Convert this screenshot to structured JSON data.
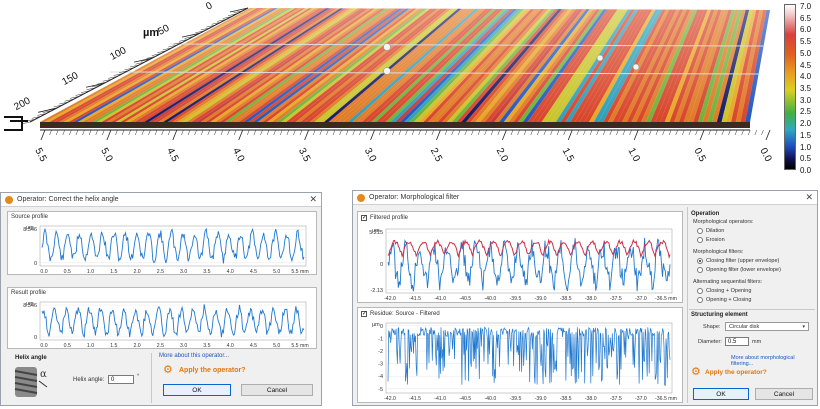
{
  "surface": {
    "depth_unit": "µm",
    "depth_ticks": [
      "0",
      "50",
      "100",
      "150",
      "200"
    ],
    "length_ticks": [
      "5.5",
      "5.0",
      "4.5",
      "4.0",
      "3.5",
      "3.0",
      "2.5",
      "2.0",
      "1.5",
      "1.0",
      "0.5",
      "0.0"
    ],
    "colorbar_ticks": [
      "7.0",
      "6.5",
      "6.0",
      "5.5",
      "5.0",
      "4.5",
      "4.0",
      "3.5",
      "3.0",
      "2.5",
      "2.0",
      "1.5",
      "1.0",
      "0.5",
      "0.0"
    ]
  },
  "helix_dialog": {
    "title": "Operator: Correct the helix angle",
    "close": "✕",
    "source_profile_label": "Source profile",
    "result_profile_label": "Result profile",
    "y_unit": "µm",
    "y_top_value": "8.346",
    "y_zero": "0",
    "x_ticks": [
      "0.0",
      "0.5",
      "1.0",
      "1.5",
      "2.0",
      "2.5",
      "3.0",
      "3.5",
      "4.0",
      "4.5",
      "5.0",
      "5.5 mm"
    ],
    "helix_section_title": "Helix angle",
    "helix_angle_label": "Helix angle:",
    "helix_angle_value": "0",
    "degree_symbol": "°",
    "alpha_symbol": "α",
    "more_about": "More about this operator...",
    "apply": "Apply the operator?",
    "ok": "OK",
    "cancel": "Cancel"
  },
  "morph_dialog": {
    "title": "Operator: Morphological filter",
    "close": "✕",
    "filtered_profile_label": "Filtered profile",
    "residue_label": "Residue: Source - Filtered",
    "y_unit": "µm",
    "top_y_max": "5.215",
    "top_y_zero": "0",
    "top_y_min": "-2.13",
    "bottom_y_ticks": [
      "0",
      "-1",
      "-2",
      "-3",
      "-4",
      "-5"
    ],
    "x_ticks": [
      "-42.0",
      "-41.5",
      "-41.0",
      "-40.5",
      "-40.0",
      "-39.5",
      "-39.0",
      "-38.5",
      "-38.0",
      "-37.5",
      "-37.0",
      "-36.5 mm"
    ],
    "operation_title": "Operation",
    "morph_ops_label": "Morphological operators:",
    "op_dilation": "Dilation",
    "op_erosion": "Erosion",
    "morph_filters_label": "Morphological filters:",
    "filter_closing": "Closing filter (upper envelope)",
    "filter_opening": "Opening filter (lower envelope)",
    "alternating_label": "Alternating sequential filters:",
    "alt_closing_opening": "Closing + Opening",
    "alt_opening_closing": "Opening + Closing",
    "structuring_title": "Structuring element",
    "shape_label": "Shape:",
    "shape_value": "Circular disk",
    "diameter_label": "Diameter:",
    "diameter_value": "0.5",
    "diameter_unit": "mm",
    "more_about": "More about morphological filtering...",
    "apply": "Apply the operator?",
    "ok": "OK",
    "cancel": "Cancel",
    "filtered_checked": "✓",
    "residue_checked": "✓"
  },
  "colors": {
    "profile_blue": "#1f78d0",
    "envelope_red": "#c8304a",
    "accent_orange": "#e07810"
  }
}
